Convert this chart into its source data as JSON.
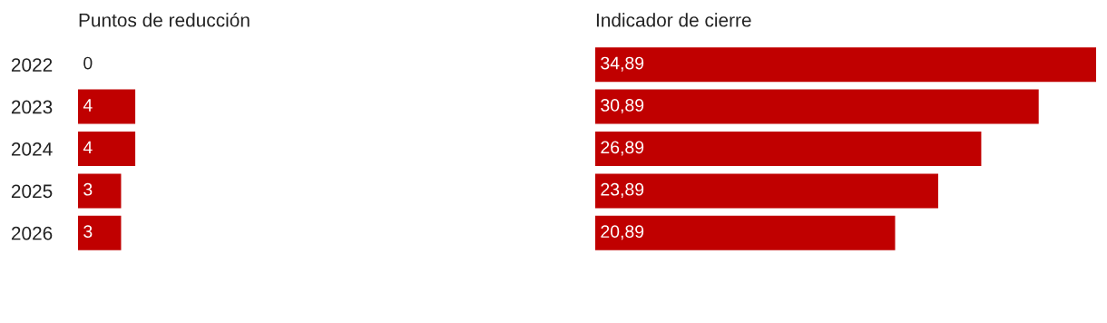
{
  "chart_data": [
    {
      "type": "bar",
      "orientation": "horizontal",
      "title": "Puntos de reducción",
      "categories": [
        "2022",
        "2023",
        "2024",
        "2025",
        "2026"
      ],
      "values": [
        0,
        4,
        4,
        3,
        3
      ],
      "value_labels": [
        "0",
        "4",
        "4",
        "3",
        "3"
      ],
      "color": "#c00000",
      "tick_labels": "y",
      "grid": false,
      "legend": false
    },
    {
      "type": "bar",
      "orientation": "horizontal",
      "title": "Indicador de cierre",
      "categories": [
        "2022",
        "2023",
        "2024",
        "2025",
        "2026"
      ],
      "values": [
        34.89,
        30.89,
        26.89,
        23.89,
        20.89
      ],
      "value_labels": [
        "34,89",
        "30,89",
        "26,89",
        "23,89",
        "20,89"
      ],
      "color": "#c00000",
      "tick_labels": false,
      "grid": false,
      "legend": false
    }
  ]
}
